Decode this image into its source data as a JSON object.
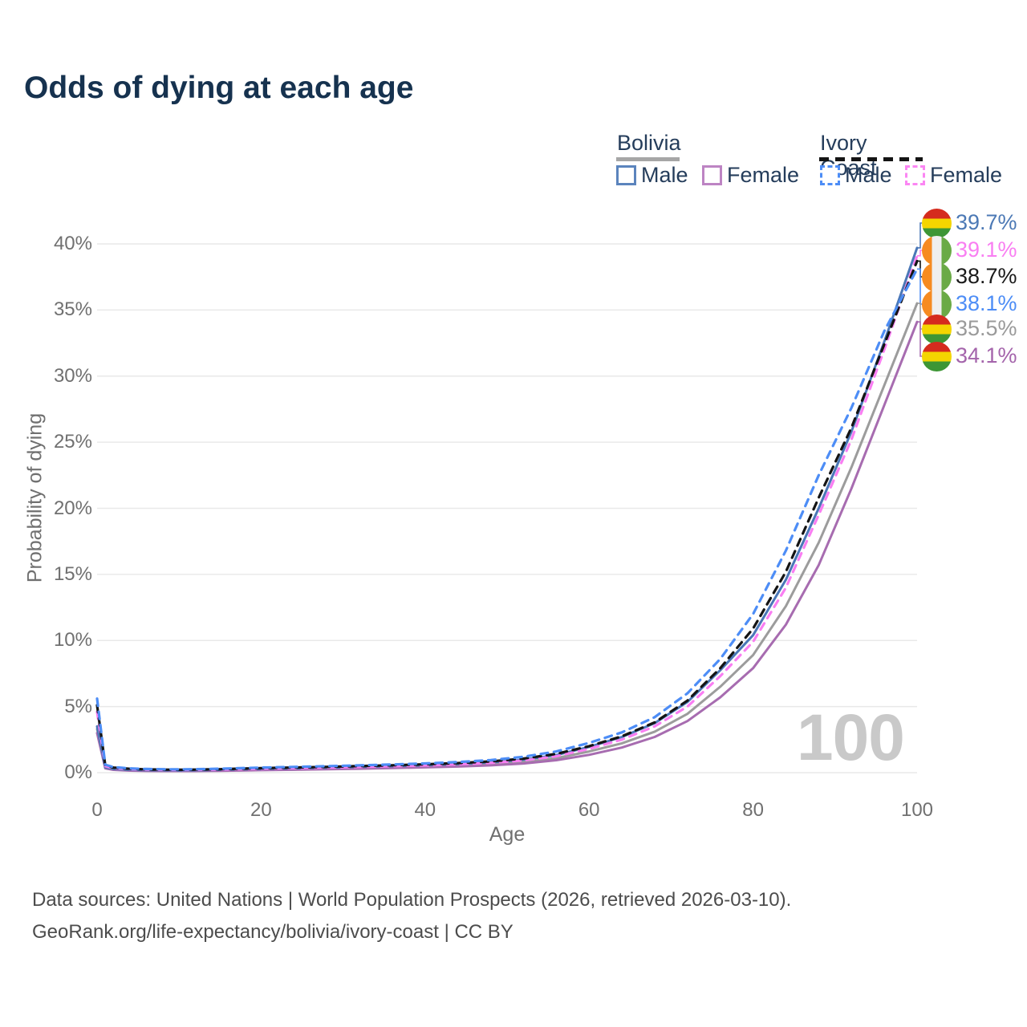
{
  "title": "Odds of dying at each age",
  "legend": {
    "groups": [
      {
        "country": "Bolivia",
        "line_style": "solid",
        "underline_color": "#a6a6a6",
        "items": [
          {
            "label": "Male",
            "swatch_color": "#5b84bd",
            "dashed": false
          },
          {
            "label": "Female",
            "swatch_color": "#bd84c3",
            "dashed": false
          }
        ]
      },
      {
        "country": "Ivory Coast",
        "line_style": "dashed",
        "underline_color": "#141414",
        "items": [
          {
            "label": "Male",
            "swatch_color": "#4d8df6",
            "dashed": true
          },
          {
            "label": "Female",
            "swatch_color": "#fb86f3",
            "dashed": true
          }
        ]
      }
    ]
  },
  "axes": {
    "y": {
      "title": "Probability of dying",
      "ticks": [
        "40%",
        "35%",
        "30%",
        "25%",
        "20%",
        "15%",
        "10%",
        "5%",
        "0%"
      ],
      "tick_values": [
        40,
        35,
        30,
        25,
        20,
        15,
        10,
        5,
        0
      ]
    },
    "x": {
      "title": "Age",
      "ticks": [
        "0",
        "20",
        "40",
        "60",
        "80",
        "100"
      ],
      "tick_values": [
        0,
        20,
        40,
        60,
        80,
        100
      ]
    }
  },
  "watermark": "100",
  "footer": {
    "line1": "Data sources: United Nations | World Population Prospects (2026, retrieved 2026-03-10).",
    "line2": "GeoRank.org/life-expectancy/bolivia/ivory-coast | CC BY"
  },
  "chart_data": {
    "type": "line",
    "title": "Odds of dying at each age",
    "xlabel": "Age",
    "ylabel": "Probability of dying",
    "xlim": [
      0,
      100
    ],
    "ylim": [
      0,
      40
    ],
    "grid": "horizontal-only",
    "legend_position": "top-right",
    "x_ages": [
      0,
      1,
      2,
      4,
      6,
      8,
      10,
      12,
      15,
      18,
      20,
      24,
      28,
      32,
      36,
      40,
      44,
      48,
      52,
      56,
      60,
      64,
      68,
      72,
      76,
      80,
      84,
      88,
      92,
      96,
      100
    ],
    "series": [
      {
        "name": "Bolivia Male",
        "color": "#4a77b7",
        "dashed": false,
        "flag": "bolivia",
        "end_label": "39.7%",
        "label_color": "#4c79b5",
        "values": [
          3.5,
          0.4,
          0.28,
          0.21,
          0.19,
          0.18,
          0.17,
          0.18,
          0.21,
          0.26,
          0.28,
          0.33,
          0.38,
          0.44,
          0.5,
          0.57,
          0.66,
          0.78,
          0.98,
          1.33,
          1.95,
          2.7,
          3.75,
          5.35,
          7.75,
          10.4,
          14.6,
          20.0,
          25.8,
          32.6,
          39.7
        ]
      },
      {
        "name": "Ivory Coast Female",
        "color": "#f97ef2",
        "dashed": true,
        "flag": "ivory-coast",
        "end_label": "39.1%",
        "label_color": "#f97ef2",
        "values": [
          4.6,
          0.5,
          0.34,
          0.26,
          0.23,
          0.21,
          0.2,
          0.21,
          0.23,
          0.27,
          0.3,
          0.34,
          0.38,
          0.43,
          0.49,
          0.55,
          0.63,
          0.74,
          0.92,
          1.24,
          1.8,
          2.5,
          3.5,
          5.0,
          7.3,
          9.9,
          14.0,
          19.5,
          25.2,
          32.0,
          39.1
        ]
      },
      {
        "name": "Ivory Coast",
        "color": "#141414",
        "dashed": true,
        "flag": "ivory-coast",
        "end_label": "38.7%",
        "label_color": "#1a1a1a",
        "values": [
          5.1,
          0.55,
          0.38,
          0.29,
          0.25,
          0.23,
          0.22,
          0.23,
          0.26,
          0.31,
          0.34,
          0.39,
          0.44,
          0.5,
          0.56,
          0.63,
          0.72,
          0.85,
          1.06,
          1.42,
          2.0,
          2.75,
          3.8,
          5.45,
          7.9,
          10.9,
          15.2,
          20.8,
          26.1,
          32.4,
          38.7
        ]
      },
      {
        "name": "Ivory Coast Male",
        "color": "#4d8df6",
        "dashed": true,
        "flag": "ivory-coast",
        "end_label": "38.1%",
        "label_color": "#4d8df6",
        "values": [
          5.6,
          0.6,
          0.42,
          0.32,
          0.28,
          0.26,
          0.25,
          0.26,
          0.3,
          0.35,
          0.38,
          0.44,
          0.49,
          0.55,
          0.62,
          0.7,
          0.8,
          0.95,
          1.2,
          1.6,
          2.25,
          3.05,
          4.2,
          6.0,
          8.6,
          12.0,
          16.8,
          22.5,
          27.6,
          33.4,
          38.1
        ]
      },
      {
        "name": "Bolivia",
        "color": "#9c9c9c",
        "dashed": false,
        "flag": "bolivia",
        "end_label": "35.5%",
        "label_color": "#9a9a9a",
        "values": [
          3.3,
          0.35,
          0.24,
          0.18,
          0.16,
          0.15,
          0.14,
          0.15,
          0.18,
          0.22,
          0.24,
          0.28,
          0.32,
          0.37,
          0.42,
          0.48,
          0.55,
          0.65,
          0.81,
          1.1,
          1.6,
          2.22,
          3.1,
          4.45,
          6.5,
          8.9,
          12.6,
          17.4,
          23.1,
          29.3,
          35.5
        ]
      },
      {
        "name": "Bolivia Female",
        "color": "#a76cb0",
        "dashed": false,
        "flag": "bolivia",
        "end_label": "34.1%",
        "label_color": "#a464ab",
        "values": [
          3.0,
          0.32,
          0.21,
          0.15,
          0.13,
          0.12,
          0.12,
          0.12,
          0.14,
          0.17,
          0.19,
          0.22,
          0.26,
          0.3,
          0.35,
          0.4,
          0.46,
          0.55,
          0.69,
          0.94,
          1.35,
          1.9,
          2.7,
          3.9,
          5.7,
          7.9,
          11.2,
          15.7,
          21.5,
          27.8,
          34.1
        ]
      }
    ]
  }
}
